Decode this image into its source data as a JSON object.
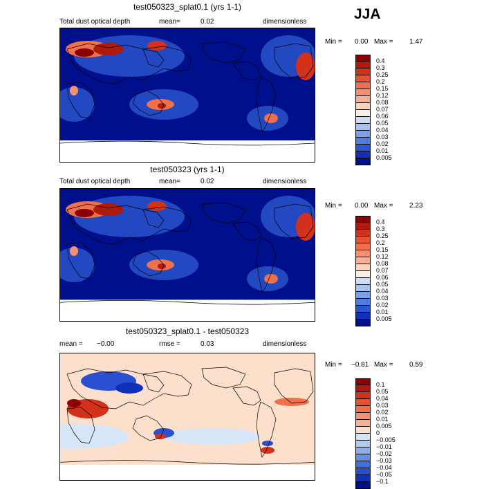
{
  "season": "JJA",
  "panels": [
    {
      "title": "test050323_splat0.1 (yrs 1-1)",
      "left_label": "Total dust optical depth",
      "mean_label": "mean=",
      "mean_value": "0.02",
      "units": "dimensionless",
      "min_label": "Min =",
      "min_value": "0.00",
      "max_label": "Max =",
      "max_value": "1.47",
      "colorbar": {
        "labels": [
          "0.4",
          "0.3",
          "0.25",
          "0.2",
          "0.15",
          "0.12",
          "0.08",
          "0.07",
          "0.06",
          "0.05",
          "0.04",
          "0.03",
          "0.02",
          "0.01",
          "0.005"
        ],
        "colors": [
          "#8b0000",
          "#b01a0a",
          "#d4311a",
          "#e8502e",
          "#f0704a",
          "#f59070",
          "#f8b090",
          "#fcd4bc",
          "#f5efe6",
          "#d0def5",
          "#a8c4f0",
          "#7aa2ea",
          "#4e7ee0",
          "#2a56d0",
          "#1030b8",
          "#00108c"
        ]
      },
      "map_theme": "dust"
    },
    {
      "title": "test050323 (yrs 1-1)",
      "left_label": "Total dust optical depth",
      "mean_label": "mean=",
      "mean_value": "0.02",
      "units": "dimensionless",
      "min_label": "Min =",
      "min_value": "0.00",
      "max_label": "Max =",
      "max_value": "2.23",
      "colorbar": {
        "labels": [
          "0.4",
          "0.3",
          "0.25",
          "0.2",
          "0.15",
          "0.12",
          "0.08",
          "0.07",
          "0.06",
          "0.05",
          "0.04",
          "0.03",
          "0.02",
          "0.01",
          "0.005"
        ],
        "colors": [
          "#8b0000",
          "#b01a0a",
          "#d4311a",
          "#e8502e",
          "#f0704a",
          "#f59070",
          "#f8b090",
          "#fcd4bc",
          "#f5efe6",
          "#d0def5",
          "#a8c4f0",
          "#7aa2ea",
          "#4e7ee0",
          "#2a56d0",
          "#1030b8",
          "#00108c"
        ]
      },
      "map_theme": "dust"
    },
    {
      "title": "test050323_splat0.1 - test050323",
      "left_label": "mean =",
      "left_value": "−0.00",
      "mean_label": "rmse =",
      "mean_value": "0.03",
      "units": "dimensionless",
      "min_label": "Min =",
      "min_value": "−0.81",
      "max_label": "Max =",
      "max_value": "0.59",
      "colorbar": {
        "labels": [
          "0.1",
          "0.05",
          "0.04",
          "0.03",
          "0.02",
          "0.01",
          "0.005",
          "0",
          "−0.005",
          "−0.01",
          "−0.02",
          "−0.03",
          "−0.04",
          "−0.05",
          "−0.1"
        ],
        "colors": [
          "#8b0000",
          "#b01a0a",
          "#d4311a",
          "#e8502e",
          "#f0704a",
          "#f59070",
          "#f8b090",
          "#fde0cc",
          "#d6e6f8",
          "#b0cbf2",
          "#8aafec",
          "#6490e4",
          "#4070dc",
          "#2850d0",
          "#1030b8",
          "#00108c"
        ]
      },
      "map_theme": "diff"
    }
  ]
}
